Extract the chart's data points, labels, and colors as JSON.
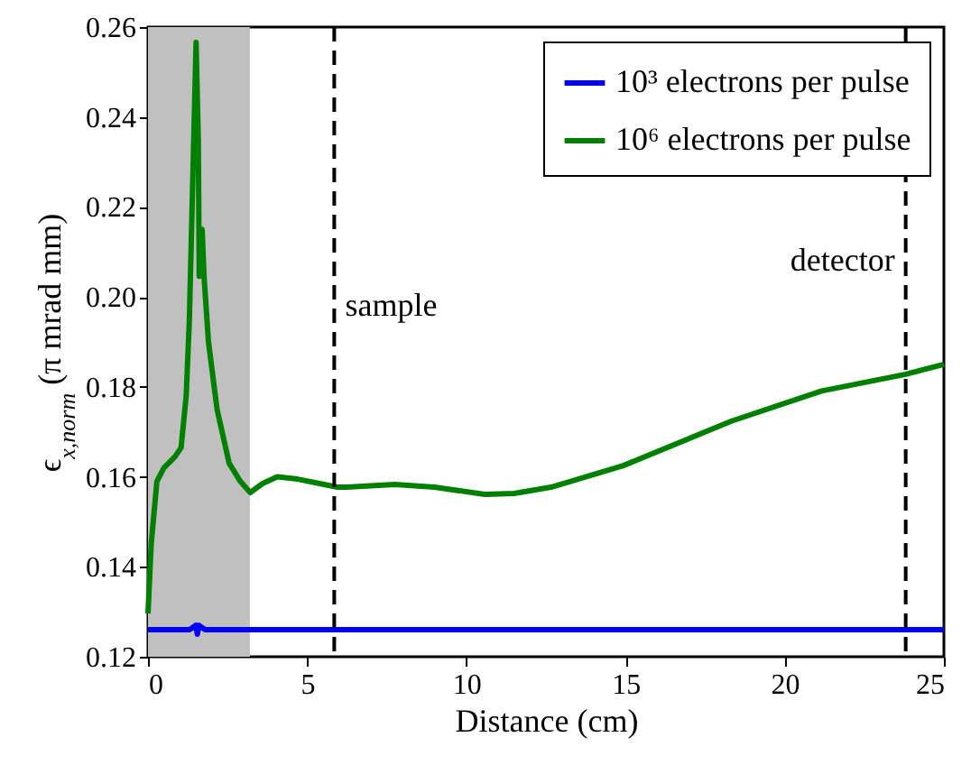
{
  "chart_data": {
    "type": "line",
    "xlabel": "Distance (cm)",
    "ylabel": "ϵ$_{x,norm}$ (π mrad mm)",
    "xlim": [
      0,
      25
    ],
    "xticks": [
      0,
      5,
      10,
      15,
      20,
      25
    ],
    "ylim": [
      0.12,
      0.26
    ],
    "yticks": [
      {
        "value": 0.12,
        "label": "0.12"
      },
      {
        "value": 0.14,
        "label": "0.14"
      },
      {
        "value": 0.16,
        "label": "0.16"
      },
      {
        "value": 0.18,
        "label": "0.18"
      },
      {
        "value": 0.2,
        "label": "0.20"
      },
      {
        "value": 0.22,
        "label": "0.22"
      },
      {
        "value": 0.24,
        "label": "0.24"
      },
      {
        "value": 0.26,
        "label": "0.26"
      }
    ],
    "legend": "top right",
    "grid": false,
    "line_style": "solid",
    "marker": "none",
    "series": [
      {
        "name": "10³ electrons per pulse",
        "color": "#0000ff",
        "x": [
          0,
          1.3,
          1.5,
          1.55,
          1.6,
          1.8,
          25
        ],
        "values": [
          0.126,
          0.126,
          0.127,
          0.125,
          0.127,
          0.126,
          0.126
        ]
      },
      {
        "name": "10⁶ electrons per pulse",
        "color": "#008000",
        "x": [
          0,
          0.1,
          0.28,
          0.5,
          0.85,
          1.04,
          1.2,
          1.3,
          1.42,
          1.51,
          1.58,
          1.61,
          1.66,
          1.7,
          1.76,
          1.9,
          2.17,
          2.55,
          2.9,
          3.21,
          3.6,
          4.06,
          4.7,
          5.39,
          5.95,
          6.24,
          7.0,
          7.75,
          9.0,
          10.58,
          11.5,
          12.66,
          14.93,
          18.33,
          21.16,
          23.8,
          25
        ],
        "values": [
          0.1296,
          0.145,
          0.159,
          0.162,
          0.1645,
          0.1665,
          0.178,
          0.195,
          0.23,
          0.2566,
          0.235,
          0.2046,
          0.212,
          0.215,
          0.2046,
          0.19,
          0.175,
          0.163,
          0.159,
          0.1565,
          0.1585,
          0.16,
          0.1595,
          0.1585,
          0.1577,
          0.1577,
          0.158,
          0.1583,
          0.1577,
          0.1561,
          0.1563,
          0.1577,
          0.1625,
          0.1724,
          0.1791,
          0.1828,
          0.185
        ]
      }
    ],
    "ref_lines": [
      {
        "axis": "x",
        "value": 5.85,
        "label": "sample",
        "color": "#000000",
        "line_style": "dashed"
      },
      {
        "axis": "x",
        "value": 23.8,
        "label": "detector",
        "color": "#000000",
        "line_style": "dashed"
      }
    ],
    "bands": [
      {
        "axis": "x",
        "from": 0,
        "to": 3.2,
        "color": "#c0c0c0"
      }
    ]
  }
}
